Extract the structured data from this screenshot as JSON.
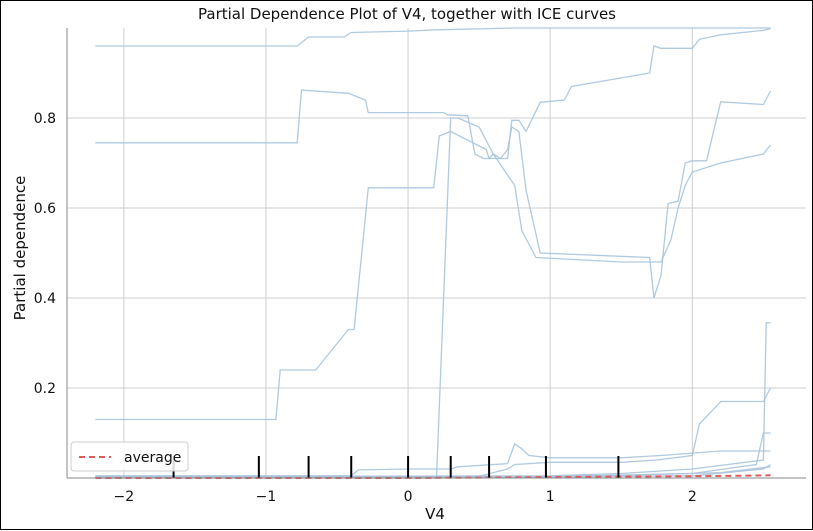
{
  "chart_data": {
    "type": "line",
    "title": "Partial Dependence Plot of V4, together with ICE curves",
    "xlabel": "V4",
    "ylabel": "Partial dependence",
    "xlim": [
      -2.4,
      2.8
    ],
    "ylim": [
      0,
      1.0
    ],
    "xticks": [
      -2,
      -1,
      0,
      1,
      2
    ],
    "xtick_labels": [
      "−2",
      "−1",
      "0",
      "1",
      "2"
    ],
    "yticks": [
      0.2,
      0.4,
      0.6,
      0.8
    ],
    "ytick_labels": [
      "0.2",
      "0.4",
      "0.6",
      "0.8"
    ],
    "grid": true,
    "legend": {
      "position": "lower-left",
      "entries": [
        {
          "label": "average",
          "color": "#e05a5a",
          "style": "dashed"
        }
      ]
    },
    "ice_color": "#a8c4dc",
    "average_color": "#e05a5a",
    "rug_color": "#000000",
    "rug_x": [
      -1.65,
      -1.05,
      -0.7,
      -0.4,
      0.0,
      0.3,
      0.57,
      0.97,
      1.48
    ],
    "series": [
      {
        "role": "ice",
        "x": [
          -2.2,
          -0.78,
          -0.7,
          -0.45,
          -0.4,
          0.0,
          0.2,
          0.5,
          0.75,
          2.55
        ],
        "y": [
          0.96,
          0.96,
          0.98,
          0.98,
          0.99,
          0.993,
          0.996,
          0.998,
          1.0,
          1.0
        ]
      },
      {
        "role": "ice",
        "x": [
          -2.2,
          -0.78,
          -0.75,
          -0.42,
          -0.3,
          -0.28,
          0.25,
          0.28,
          0.42,
          0.47,
          0.53,
          0.6,
          0.7,
          0.73,
          0.78,
          0.83,
          0.93,
          1.1,
          1.15,
          1.7,
          1.73,
          1.78,
          2.0,
          2.05,
          2.2,
          2.5,
          2.55
        ],
        "y": [
          0.745,
          0.745,
          0.862,
          0.855,
          0.84,
          0.812,
          0.812,
          0.807,
          0.805,
          0.72,
          0.71,
          0.71,
          0.71,
          0.795,
          0.795,
          0.77,
          0.835,
          0.84,
          0.87,
          0.9,
          0.96,
          0.955,
          0.955,
          0.975,
          0.985,
          0.995,
          0.998
        ]
      },
      {
        "role": "ice",
        "x": [
          -2.2,
          -0.93,
          -0.9,
          -0.65,
          -0.42,
          -0.38,
          -0.28,
          0.18,
          0.22,
          0.3,
          0.55,
          0.57,
          0.6,
          0.65,
          0.7,
          0.73,
          0.78,
          0.83,
          0.93,
          1.7,
          1.73,
          1.78,
          1.83,
          1.9,
          1.95,
          2.0,
          2.1,
          2.2,
          2.5,
          2.55
        ],
        "y": [
          0.13,
          0.13,
          0.24,
          0.24,
          0.33,
          0.33,
          0.645,
          0.645,
          0.76,
          0.77,
          0.73,
          0.71,
          0.72,
          0.71,
          0.73,
          0.78,
          0.77,
          0.64,
          0.5,
          0.49,
          0.4,
          0.45,
          0.61,
          0.615,
          0.7,
          0.705,
          0.705,
          0.836,
          0.83,
          0.86
        ]
      },
      {
        "role": "ice",
        "x": [
          -2.2,
          0.2,
          0.3,
          0.35,
          0.5,
          0.6,
          0.75,
          0.8,
          0.9,
          1.5,
          1.78,
          1.85,
          1.9,
          1.95,
          2.0,
          2.2,
          2.5,
          2.55
        ],
        "y": [
          0.0,
          0.0,
          0.8,
          0.8,
          0.78,
          0.72,
          0.65,
          0.55,
          0.49,
          0.48,
          0.48,
          0.53,
          0.6,
          0.65,
          0.68,
          0.7,
          0.72,
          0.74
        ]
      },
      {
        "role": "ice",
        "x": [
          -2.2,
          -0.4,
          -0.35,
          0.0,
          0.3,
          0.35,
          0.7,
          0.75,
          0.8,
          0.85,
          1.0,
          1.5,
          1.78,
          2.2,
          2.55
        ],
        "y": [
          0.005,
          0.005,
          0.018,
          0.02,
          0.02,
          0.025,
          0.032,
          0.076,
          0.065,
          0.05,
          0.045,
          0.045,
          0.05,
          0.06,
          0.06
        ]
      },
      {
        "role": "ice",
        "x": [
          -2.2,
          0.5,
          0.7,
          0.75,
          1.0,
          1.5,
          1.75,
          2.0,
          2.05,
          2.2,
          2.35,
          2.45,
          2.5,
          2.55
        ],
        "y": [
          0.004,
          0.004,
          0.02,
          0.03,
          0.035,
          0.035,
          0.04,
          0.05,
          0.12,
          0.17,
          0.17,
          0.17,
          0.17,
          0.2
        ]
      },
      {
        "role": "ice",
        "x": [
          -2.2,
          1.0,
          1.5,
          2.0,
          2.5,
          2.52,
          2.55
        ],
        "y": [
          0.003,
          0.005,
          0.01,
          0.02,
          0.04,
          0.345,
          0.345
        ]
      },
      {
        "role": "ice",
        "x": [
          -2.2,
          1.0,
          2.0,
          2.45,
          2.5,
          2.55
        ],
        "y": [
          0.002,
          0.003,
          0.01,
          0.03,
          0.1,
          0.1
        ]
      },
      {
        "role": "ice",
        "x": [
          -2.2,
          1.0,
          2.0,
          2.5,
          2.55
        ],
        "y": [
          0.001,
          0.002,
          0.005,
          0.02,
          0.03
        ]
      },
      {
        "role": "ice",
        "x": [
          -2.2,
          0.8,
          1.5,
          2.2,
          2.55
        ],
        "y": [
          0.0,
          0.003,
          0.006,
          0.012,
          0.025
        ]
      },
      {
        "role": "average",
        "name": "average",
        "x": [
          -2.2,
          -1.0,
          0.0,
          0.5,
          1.0,
          1.5,
          2.0,
          2.3,
          2.55
        ],
        "y": [
          0.0,
          0.0,
          0.0,
          0.001,
          0.002,
          0.003,
          0.004,
          0.005,
          0.006
        ]
      }
    ]
  }
}
